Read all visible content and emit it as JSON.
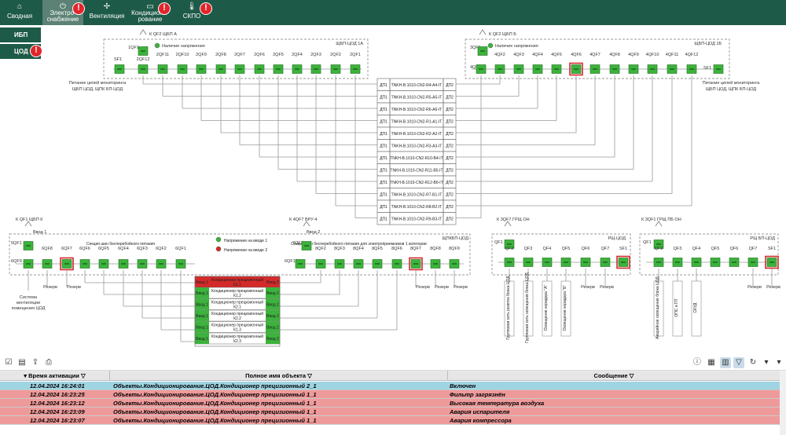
{
  "topbar": {
    "tabs": [
      {
        "label": "Сводная",
        "icon": "home-icon",
        "alert": false
      },
      {
        "label": "Электро-\nснабжение",
        "icon": "power-icon",
        "alert": true
      },
      {
        "label": "Вентиляция",
        "icon": "fan-icon",
        "alert": false
      },
      {
        "label": "Кондициони-\nрование",
        "icon": "ac-icon",
        "alert": true
      },
      {
        "label": "СКПО",
        "icon": "thermometer-icon",
        "alert": true
      }
    ],
    "alert_mark": "!"
  },
  "sidebar": {
    "items": [
      {
        "label": "ИБП",
        "alert": false
      },
      {
        "label": "ЦОД",
        "alert": true
      }
    ]
  },
  "colors": {
    "bar": "#1e5a48",
    "active_tab": "#5c8175",
    "green": "#3cb33c",
    "red": "#d42a2a",
    "alert": "#e2252b"
  },
  "diagram": {
    "feed_1a": "К QF2 ЩБП А",
    "feed_1b": "К QF2 ЩБП Б",
    "panel_1a": "ЩБП-ЦОД 1А",
    "panel_1b": "ЩБП-ЦОД 1Б",
    "voltage_present": "Наличие напряжения",
    "top_left_row": [
      "2QF12",
      "2QF11",
      "2QF10",
      "2QF9",
      "2QF8",
      "2QF7",
      "2QF6",
      "2QF5",
      "2QF4",
      "2QF3",
      "2QF2",
      "2QF1"
    ],
    "top_left_misc": {
      "q1": "1QF1",
      "sf": "SF1"
    },
    "top_right_row": [
      "4QF2",
      "4QF3",
      "4QF4",
      "4QF5",
      "4QF6",
      "4QF7",
      "4QF8",
      "4QF9",
      "4QF10",
      "4QF11",
      "4QF12"
    ],
    "top_right_misc": {
      "q3": "3QF1",
      "q4": "4QF1",
      "sf": "SF1"
    },
    "monitoring_left": [
      "Питание цепей мониторинга",
      "ЩБП ЦОД, ЩПК БП-ЦОД"
    ],
    "monitoring_right": [
      "Питание цепей мониторинга",
      "ЩБП ЦОД, ЩПК БП-ЦОД"
    ],
    "center_table": [
      [
        "ДП1",
        "TNKH-B.1010-CN2-R4-A4-IT",
        "ДП2"
      ],
      [
        "ДП1",
        "TNKH-B.1010-CN2-R5-A5-IT",
        "ДП2"
      ],
      [
        "ДП1",
        "TNKH-B.1010-CN2-R6-A6-IT",
        "ДП2"
      ],
      [
        "ДП1",
        "TNKH-B.1010-CN2-R1-A1-IT",
        "ДП2"
      ],
      [
        "ДП1",
        "TNKH-B.1010-CN2-R2-A2-IT",
        "ДП2"
      ],
      [
        "ДП1",
        "TNKH-B.1010-CN2-R3-A3-IT",
        "ДП2"
      ],
      [
        "ДП1",
        "TNKH-B.1010-CN2-R10-B4-IT",
        "ДП2"
      ],
      [
        "ДП1",
        "TNKH-B.1010-CN2-R11-B5-IT",
        "ДП2"
      ],
      [
        "ДП1",
        "TNKH-B.1010-CN2-R12-B6-IT",
        "ДП2"
      ],
      [
        "ДП1",
        "TNKH-B.1010-CN2-R7-B1-IT",
        "ДП2"
      ],
      [
        "ДП1",
        "TNKH-B.1010-CN2-R8-B2-IT",
        "ДП2"
      ],
      [
        "ДП1",
        "TNKH-B.1010-CN2-R9-B3-IT",
        "ДП2"
      ]
    ],
    "feed_k": "К QF1 ЩБП К",
    "feed_vru": "К 4QF7 ВРУ-4",
    "input_1": "Ввод 1",
    "input_2": "Ввод 2",
    "section_1": "Секция шин бесперебойного питания",
    "section_2": "Секция шин бесперебойного питания для электроприемников 1 категории",
    "panel_k": "ЩПКБП-ЦОД",
    "voltage_in1": "Напряжение на вводе 1",
    "voltage_in2": "Напряжение на вводе 2",
    "bl_top": [
      "5QF1",
      "6QF8",
      "6QF7",
      "6QF6",
      "6QF5",
      "6QF4",
      "6QF3",
      "6QF2",
      "6QF1"
    ],
    "bl_q": "6QF9",
    "bm_row": [
      "8QF2",
      "8QF3",
      "8QF4",
      "8QF5",
      "8QF6",
      "8QF7",
      "8QF8",
      "8QF9"
    ],
    "bm_misc": {
      "q7": "7QF1",
      "q6": "6QF10"
    },
    "bl_labels": [
      "Система вентиляции помещения ЦОД",
      "Резерв",
      "Резерв"
    ],
    "bm_labels": [
      "Резерв",
      "Резерв",
      "Резерв"
    ],
    "ac_table": {
      "head": [
        "Ввод 1",
        "Кондиционер прецизионный К1.1",
        "Ввод 2"
      ],
      "rows": [
        [
          "Ввод 1",
          "Кондиционер прецизионный К1.2",
          "Ввод 2"
        ],
        [
          "Ввод 1",
          "Кондиционер прецизионный К2.1",
          "Ввод 2"
        ],
        [
          "Ввод 1",
          "Кондиционер прецизионный К2.2",
          "Ввод 2"
        ],
        [
          "Ввод 1",
          "Кондиционер прецизионный К1.3",
          "Ввод 2"
        ],
        [
          "Ввод 1",
          "Кондиционер прецизионный К2.3",
          "Ввод 2"
        ]
      ]
    },
    "feed_grsch": "К 3QF7 ГРЩ ОН",
    "panel_rsch": "РЩ-ЦОД",
    "rsch_top": [
      "QF1"
    ],
    "rsch_row": [
      "QF2",
      "QF3",
      "QF4",
      "QF5",
      "QF6",
      "QF7",
      "SF1"
    ],
    "rsch_labels": [
      "Групповая сеть розеток блока ЦОД",
      "Групповая сеть освещения блока ЦОД",
      "Освещение коридора \"А\"",
      "Освещение коридора \"Б\"",
      "Резерв",
      "Резерв"
    ],
    "feed_grsch_pb": "К 3QF1 ГРЩ ПБ ОН",
    "panel_rsch_pb": "РЩ БП-ЦОД",
    "rschpb_top": [
      "QF1"
    ],
    "rschpb_row": [
      "QF2",
      "QF3",
      "QF4",
      "QF5",
      "QF6",
      "QF7",
      "SF1"
    ],
    "rschpb_labels": [
      "Аварийное освещение блока ЦОД",
      "ОПС и ПТ",
      "СКУД",
      "Резерв",
      "Резерв"
    ]
  },
  "grid": {
    "columns": [
      "Время активации",
      "Полное имя объекта",
      "Сообщение"
    ],
    "rows": [
      {
        "time": "12.04.2024 16:24:01",
        "object": "Объекты.Кондиционирование.ЦОД.Кондиционер прецизионный 2_1",
        "message": "Включен",
        "color": "#9fd4e3"
      },
      {
        "time": "12.04.2024 16:23:25",
        "object": "Объекты.Кондиционирование.ЦОД.Кондиционер прецизионный 1_1",
        "message": "Фильтр загрязнён",
        "color": "#ef9a9a"
      },
      {
        "time": "12.04.2024 16:23:12",
        "object": "Объекты.Кондиционирование.ЦОД.Кондиционер прецизионный 1_1",
        "message": "Высокая температура воздуха",
        "color": "#ef9a9a"
      },
      {
        "time": "12.04.2024 16:23:09",
        "object": "Объекты.Кондиционирование.ЦОД.Кондиционер прецизионный 1_1",
        "message": "Авария испарителя",
        "color": "#ef9a9a"
      },
      {
        "time": "12.04.2024 16:23:07",
        "object": "Объекты.Кондиционирование.ЦОД.Кондиционер прецизионный 1_1",
        "message": "Авария компрессора",
        "color": "#ef9a9a"
      }
    ]
  }
}
